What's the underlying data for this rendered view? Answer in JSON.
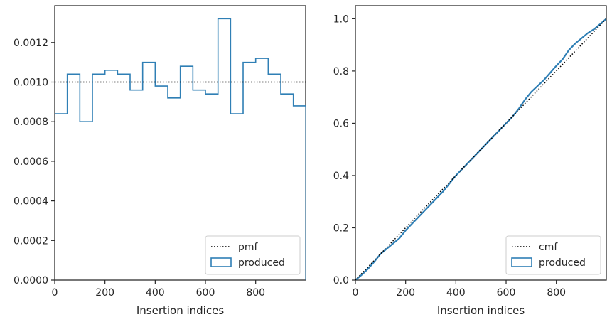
{
  "chart_data": [
    {
      "type": "histogram",
      "xlabel": "Insertion indices",
      "ylabel": "",
      "xlim": [
        0,
        999
      ],
      "ylim": [
        0,
        0.001386
      ],
      "xticks": [
        0,
        200,
        400,
        600,
        800
      ],
      "xtick_labels": [
        "0",
        "200",
        "400",
        "600",
        "800"
      ],
      "yticks": [
        0,
        0.0002,
        0.0004,
        0.0006,
        0.0008,
        0.001,
        0.0012
      ],
      "ytick_labels": [
        "0.0000",
        "0.0002",
        "0.0004",
        "0.0006",
        "0.0008",
        "0.0010",
        "0.0012"
      ],
      "bin_edges": [
        0,
        50,
        100,
        150,
        200,
        250,
        300,
        350,
        400,
        450,
        500,
        550,
        600,
        650,
        700,
        750,
        800,
        850,
        900,
        950,
        1000
      ],
      "series": [
        {
          "name": "produced",
          "style": "step",
          "color": "#2f7fb5",
          "values": [
            0.00084,
            0.00104,
            0.0008,
            0.00104,
            0.00106,
            0.00104,
            0.00096,
            0.0011,
            0.00098,
            0.00092,
            0.00108,
            0.00096,
            0.00094,
            0.00132,
            0.00084,
            0.0011,
            0.00112,
            0.00104,
            0.00094,
            0.00088
          ]
        },
        {
          "name": "pmf",
          "style": "dotted",
          "color": "#000000",
          "y": 0.001
        }
      ],
      "legend": {
        "placement": "lower-right",
        "entries": [
          "pmf",
          "produced"
        ]
      },
      "grid": false
    },
    {
      "type": "line",
      "xlabel": "Insertion indices",
      "ylabel": "",
      "xlim": [
        0,
        999
      ],
      "ylim": [
        0,
        1.05
      ],
      "xticks": [
        0,
        200,
        400,
        600,
        800
      ],
      "xtick_labels": [
        "0",
        "200",
        "400",
        "600",
        "800"
      ],
      "yticks": [
        0,
        0.2,
        0.4,
        0.6,
        0.8,
        1.0
      ],
      "ytick_labels": [
        "0.0",
        "0.2",
        "0.4",
        "0.6",
        "0.8",
        "1.0"
      ],
      "series": [
        {
          "name": "produced",
          "style": "solid",
          "color": "#2f7fb5",
          "x": [
            0,
            25,
            50,
            75,
            100,
            125,
            150,
            175,
            200,
            250,
            300,
            350,
            400,
            450,
            500,
            550,
            600,
            625,
            650,
            675,
            700,
            750,
            800,
            825,
            850,
            875,
            900,
            925,
            950,
            975,
            999
          ],
          "y": [
            0,
            0.02,
            0.043,
            0.07,
            0.1,
            0.12,
            0.14,
            0.16,
            0.19,
            0.24,
            0.29,
            0.34,
            0.4,
            0.45,
            0.5,
            0.55,
            0.6,
            0.625,
            0.655,
            0.69,
            0.72,
            0.765,
            0.82,
            0.845,
            0.88,
            0.905,
            0.925,
            0.945,
            0.96,
            0.98,
            1.0
          ]
        },
        {
          "name": "cmf",
          "style": "dotted",
          "color": "#000000",
          "x": [
            0,
            999
          ],
          "y": [
            0,
            1.0
          ]
        }
      ],
      "legend": {
        "placement": "lower-right",
        "entries": [
          "cmf",
          "produced"
        ]
      },
      "grid": false
    }
  ]
}
